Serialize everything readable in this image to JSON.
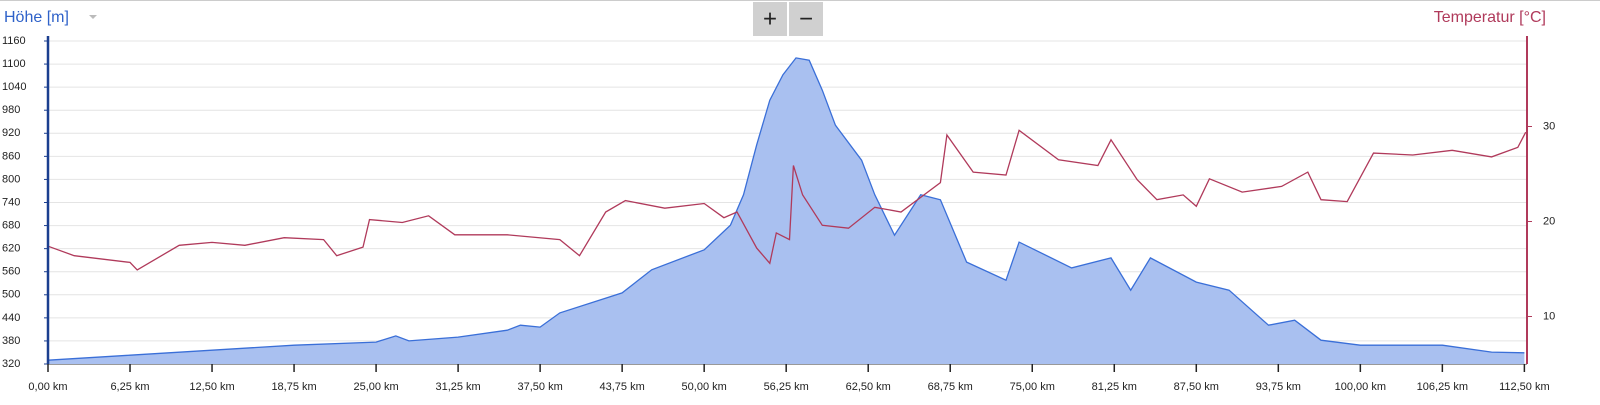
{
  "chart_data": {
    "type": "line",
    "buttons": [
      "+",
      "−"
    ],
    "xlim": [
      0,
      112.7
    ],
    "xticks": [
      {
        "value": 0,
        "label": "0,00 km"
      },
      {
        "value": 6.25,
        "label": "6,25 km"
      },
      {
        "value": 12.5,
        "label": "12,50 km"
      },
      {
        "value": 18.75,
        "label": "18,75 km"
      },
      {
        "value": 25,
        "label": "25,00 km"
      },
      {
        "value": 31.25,
        "label": "31,25 km"
      },
      {
        "value": 37.5,
        "label": "37,50 km"
      },
      {
        "value": 43.75,
        "label": "43,75 km"
      },
      {
        "value": 50,
        "label": "50,00 km"
      },
      {
        "value": 56.25,
        "label": "56,25 km"
      },
      {
        "value": 62.5,
        "label": "62,50 km"
      },
      {
        "value": 68.75,
        "label": "68,75 km"
      },
      {
        "value": 75,
        "label": "75,00 km"
      },
      {
        "value": 81.25,
        "label": "81,25 km"
      },
      {
        "value": 87.5,
        "label": "87,50 km"
      },
      {
        "value": 93.75,
        "label": "93,75 km"
      },
      {
        "value": 100,
        "label": "100,00 km"
      },
      {
        "value": 106.25,
        "label": "106,25 km"
      },
      {
        "value": 112.5,
        "label": "112,50 km"
      }
    ],
    "ylim": [
      320,
      1160
    ],
    "yticks": [
      320,
      380,
      440,
      500,
      560,
      620,
      680,
      740,
      800,
      860,
      920,
      980,
      1040,
      1100,
      1160
    ],
    "y2lim": [
      5,
      39
    ],
    "y2ticks": [
      10,
      20,
      30
    ],
    "grid": true,
    "series": [
      {
        "name": "Höhe [m]",
        "color": "#3a6fd8",
        "fill": "#a9c0f0",
        "x": [
          0,
          6.25,
          12.5,
          18.75,
          25,
          26.5,
          27.5,
          31.25,
          35,
          36,
          37.5,
          39,
          43.75,
          46,
          50,
          52,
          53,
          54,
          55,
          56,
          57,
          58,
          59,
          60,
          62,
          63,
          64.5,
          66.5,
          68,
          70,
          73,
          74,
          78,
          81,
          82.5,
          84,
          87.5,
          90,
          93,
          95,
          97,
          100,
          106.25,
          110,
          112.5
        ],
        "values": [
          330,
          343,
          356,
          369,
          377,
          393,
          380,
          390,
          408,
          421,
          416,
          453,
          505,
          565,
          617,
          681,
          760,
          890,
          1006,
          1072,
          1116,
          1110,
          1032,
          941,
          850,
          760,
          655,
          760,
          747,
          585,
          538,
          637,
          570,
          596,
          512,
          596,
          533,
          512,
          421,
          434,
          382,
          369,
          369,
          351,
          349
        ]
      },
      {
        "name": "Temperatur [°C]",
        "color": "#b03a5b",
        "axis": "y2",
        "x": [
          0,
          2,
          6.25,
          6.8,
          10,
          12.5,
          15,
          18,
          21,
          22,
          24,
          24.5,
          27,
          29,
          31,
          35,
          39,
          40.5,
          42.5,
          44,
          47,
          50,
          51.5,
          52.5,
          54,
          55,
          55.5,
          56.5,
          56.8,
          57.5,
          59,
          61,
          63,
          65,
          68,
          68.5,
          70.5,
          73,
          74,
          77,
          80,
          81,
          83,
          84.5,
          86.5,
          87.5,
          88.5,
          91,
          94,
          96,
          97,
          99,
          101,
          104,
          107,
          110,
          112,
          112.6
        ],
        "values": [
          17.4,
          16.4,
          15.7,
          14.9,
          17.5,
          17.8,
          17.5,
          18.3,
          18.1,
          16.4,
          17.3,
          20.2,
          19.9,
          20.6,
          18.6,
          18.6,
          18.1,
          16.4,
          21.0,
          22.2,
          21.4,
          21.9,
          20.4,
          21.0,
          17.2,
          15.6,
          18.8,
          18.1,
          25.9,
          22.8,
          19.6,
          19.3,
          21.5,
          21.0,
          24.1,
          29.1,
          25.2,
          24.9,
          29.6,
          26.5,
          25.9,
          28.6,
          24.4,
          22.3,
          22.8,
          21.6,
          24.5,
          23.1,
          23.7,
          25.2,
          22.3,
          22.1,
          27.2,
          27.0,
          27.5,
          26.8,
          27.8,
          29.4
        ]
      }
    ]
  }
}
